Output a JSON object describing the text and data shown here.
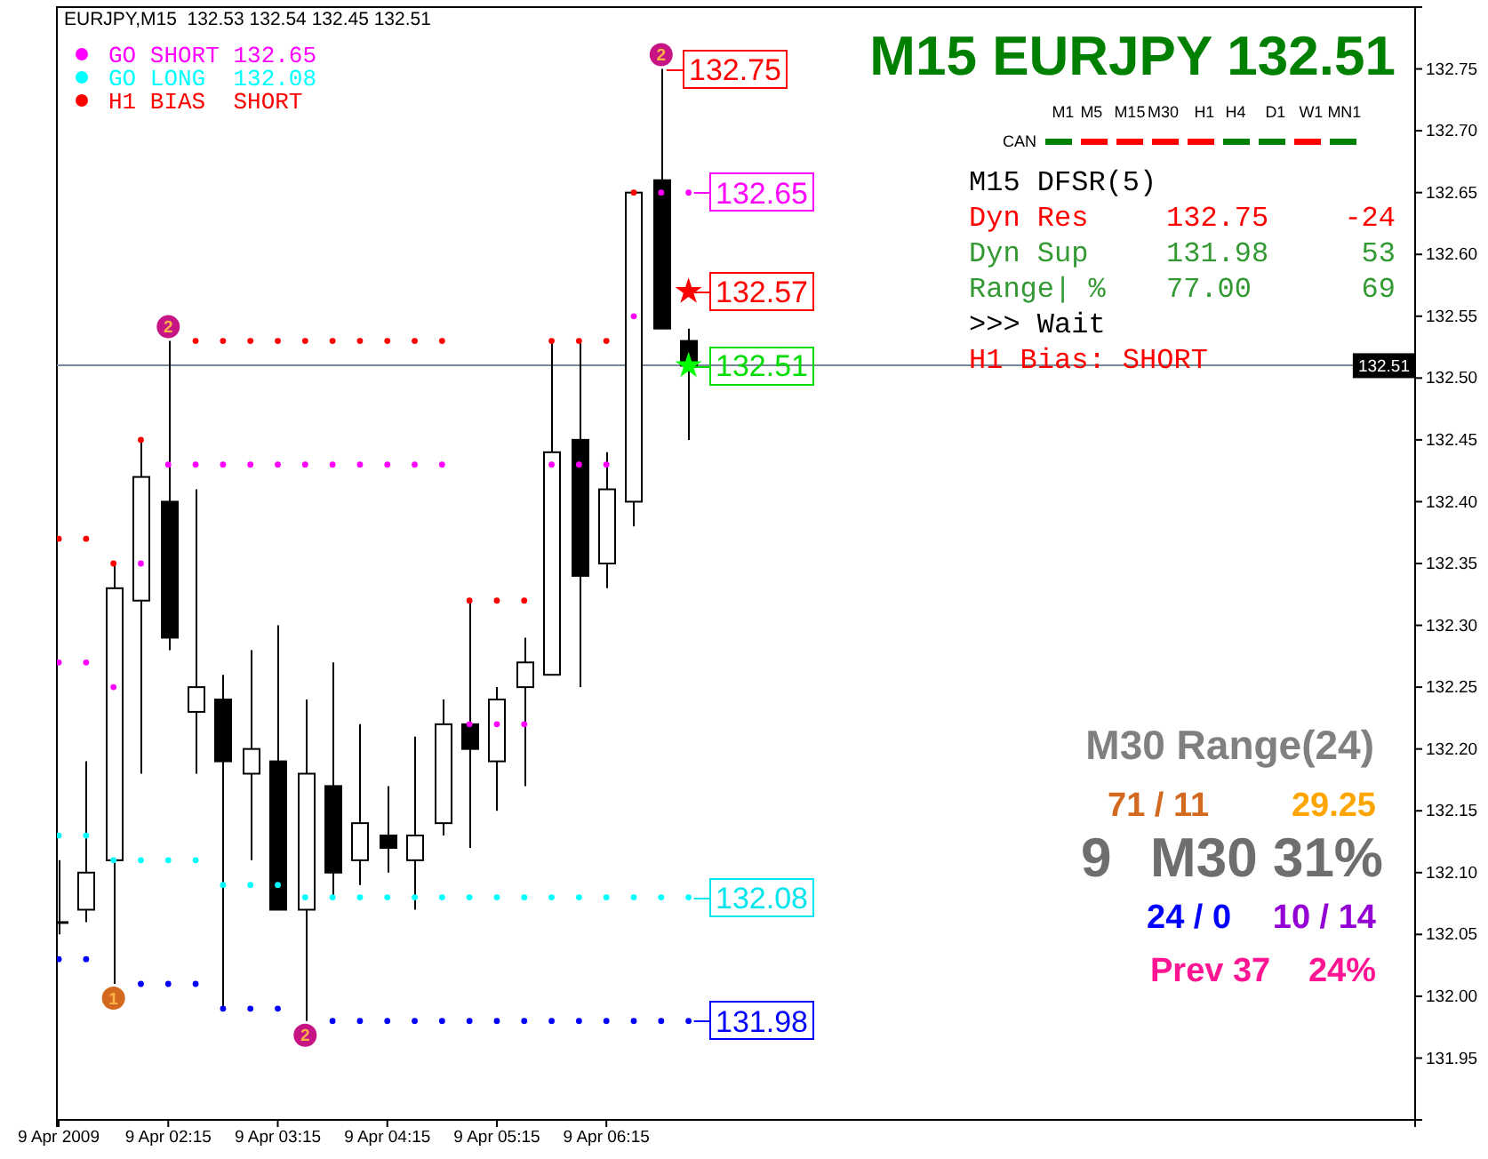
{
  "chart_data": {
    "type": "candlestick",
    "title": "M15 EURJPY 132.51",
    "subtitle": "EURJPY,M15  132.53 132.54 132.45 132.51",
    "x": [
      "2009-04-09T01:15",
      "2009-04-09T01:30",
      "2009-04-09T01:45",
      "2009-04-09T02:00",
      "2009-04-09T02:15",
      "2009-04-09T02:30",
      "2009-04-09T02:45",
      "2009-04-09T03:00",
      "2009-04-09T03:15",
      "2009-04-09T03:30",
      "2009-04-09T03:45",
      "2009-04-09T04:00",
      "2009-04-09T04:15",
      "2009-04-09T04:30",
      "2009-04-09T04:45",
      "2009-04-09T05:00",
      "2009-04-09T05:15",
      "2009-04-09T05:30",
      "2009-04-09T05:45",
      "2009-04-09T06:00",
      "2009-04-09T06:15",
      "2009-04-09T06:30",
      "2009-04-09T06:45",
      "2009-04-09T07:00"
    ],
    "ohlc": [
      [
        132.06,
        132.11,
        132.05,
        132.06
      ],
      [
        132.07,
        132.19,
        132.06,
        132.1
      ],
      [
        132.11,
        132.35,
        132.01,
        132.33
      ],
      [
        132.32,
        132.45,
        132.18,
        132.42
      ],
      [
        132.4,
        132.53,
        132.28,
        132.29
      ],
      [
        132.23,
        132.41,
        132.18,
        132.25
      ],
      [
        132.24,
        132.26,
        131.99,
        132.19
      ],
      [
        132.18,
        132.28,
        132.11,
        132.2
      ],
      [
        132.19,
        132.3,
        132.07,
        132.07
      ],
      [
        132.07,
        132.24,
        131.98,
        132.18
      ],
      [
        132.17,
        132.27,
        132.08,
        132.1
      ],
      [
        132.11,
        132.22,
        132.09,
        132.14
      ],
      [
        132.13,
        132.17,
        132.1,
        132.12
      ],
      [
        132.11,
        132.21,
        132.07,
        132.13
      ],
      [
        132.14,
        132.24,
        132.13,
        132.22
      ],
      [
        132.22,
        132.32,
        132.12,
        132.2
      ],
      [
        132.19,
        132.25,
        132.15,
        132.24
      ],
      [
        132.25,
        132.29,
        132.17,
        132.27
      ],
      [
        132.26,
        132.53,
        132.26,
        132.44
      ],
      [
        132.45,
        132.53,
        132.25,
        132.34
      ],
      [
        132.35,
        132.44,
        132.33,
        132.41
      ],
      [
        132.4,
        132.65,
        132.38,
        132.65
      ],
      [
        132.66,
        132.75,
        132.54,
        132.54
      ],
      [
        132.53,
        132.54,
        132.45,
        132.51
      ]
    ],
    "xlim": [
      "2009-04-09T01:14",
      "2009-04-09T13:38"
    ],
    "xticks": [
      {
        "value": "2009-04-09T01:15",
        "label": "9 Apr 2009"
      },
      {
        "value": "2009-04-09T02:15",
        "label": "9 Apr 02:15"
      },
      {
        "value": "2009-04-09T03:15",
        "label": "9 Apr 03:15"
      },
      {
        "value": "2009-04-09T04:15",
        "label": "9 Apr 04:15"
      },
      {
        "value": "2009-04-09T05:15",
        "label": "9 Apr 05:15"
      },
      {
        "value": "2009-04-09T06:15",
        "label": "9 Apr 06:15"
      }
    ],
    "ylim": [
      131.9,
      132.8
    ],
    "yticks": [
      131.95,
      {
        "value": 132.0,
        "label": "132.00"
      },
      132.05,
      {
        "value": 132.1,
        "label": "132.10"
      },
      132.15,
      {
        "value": 132.2,
        "label": "132.20"
      },
      132.25,
      {
        "value": 132.3,
        "label": "132.30"
      },
      132.35,
      {
        "value": 132.4,
        "label": "132.40"
      },
      132.45,
      {
        "value": 132.5,
        "label": "132.50"
      },
      132.55,
      {
        "value": 132.6,
        "label": "132.60"
      },
      132.65,
      {
        "value": 132.7,
        "label": "132.70"
      },
      132.75
    ],
    "series": [
      {
        "type": "scatter",
        "marker": "circle",
        "color": "#ff0000",
        "x": [
          "2009-04-09T01:15",
          "2009-04-09T01:30",
          "2009-04-09T01:45",
          "2009-04-09T02:00",
          "2009-04-09T02:30",
          "2009-04-09T02:45",
          "2009-04-09T03:00",
          "2009-04-09T03:15",
          "2009-04-09T03:30",
          "2009-04-09T03:45",
          "2009-04-09T04:00",
          "2009-04-09T04:15",
          "2009-04-09T04:30",
          "2009-04-09T04:45",
          "2009-04-09T05:00",
          "2009-04-09T05:15",
          "2009-04-09T05:30",
          "2009-04-09T05:45",
          "2009-04-09T06:00",
          "2009-04-09T06:15",
          "2009-04-09T06:30"
        ],
        "values": [
          132.37,
          132.37,
          132.35,
          132.45,
          132.53,
          132.53,
          132.53,
          132.53,
          132.53,
          132.53,
          132.53,
          132.53,
          132.53,
          132.53,
          132.32,
          132.32,
          132.32,
          132.53,
          132.53,
          132.53,
          132.65
        ]
      },
      {
        "type": "scatter",
        "marker": "circle",
        "color": "#ff00ff",
        "values": [
          132.27,
          132.27,
          132.25,
          132.35,
          132.43,
          132.43,
          132.43,
          132.43,
          132.43,
          132.43,
          132.43,
          132.43,
          132.43,
          132.43,
          132.43,
          132.22,
          132.22,
          132.22,
          132.43,
          132.43,
          132.43,
          132.55,
          132.65,
          132.65
        ]
      },
      {
        "type": "scatter",
        "marker": "circle",
        "color": "#00ffff",
        "values": [
          132.13,
          132.13,
          132.11,
          132.11,
          132.11,
          132.11,
          132.09,
          132.09,
          132.09,
          132.08,
          132.08,
          132.08,
          132.08,
          132.08,
          132.08,
          132.08,
          132.08,
          132.08,
          132.08,
          132.08,
          132.08,
          132.08,
          132.08,
          132.08
        ]
      },
      {
        "type": "scatter",
        "marker": "circle",
        "color": "#0000ff",
        "x": [
          "2009-04-09T01:15",
          "2009-04-09T01:30",
          "2009-04-09T02:00",
          "2009-04-09T02:15",
          "2009-04-09T02:30",
          "2009-04-09T02:45",
          "2009-04-09T03:00",
          "2009-04-09T03:15",
          "2009-04-09T03:45",
          "2009-04-09T04:00",
          "2009-04-09T04:15",
          "2009-04-09T04:30",
          "2009-04-09T04:45",
          "2009-04-09T05:00",
          "2009-04-09T05:15",
          "2009-04-09T05:30",
          "2009-04-09T05:45",
          "2009-04-09T06:00",
          "2009-04-09T06:15",
          "2009-04-09T06:30",
          "2009-04-09T06:45",
          "2009-04-09T07:00"
        ],
        "values": [
          132.03,
          132.03,
          132.01,
          132.01,
          132.01,
          131.99,
          131.99,
          131.99,
          131.98,
          131.98,
          131.98,
          131.98,
          131.98,
          131.98,
          131.98,
          131.98,
          131.98,
          131.98,
          131.98,
          131.98,
          131.98,
          131.98
        ]
      },
      {
        "type": "scatter",
        "marker": "star",
        "colors": [
          "#ff0000",
          "#00ff00"
        ],
        "x": [
          "2009-04-09T07:00",
          "2009-04-09T07:00"
        ],
        "values": [
          132.57,
          132.51
        ]
      }
    ],
    "ref_lines": [
      {
        "axis": "y",
        "value": 132.51,
        "label": "132.51",
        "color": "#778899"
      }
    ],
    "annotations": [
      "GO SHORT 132.65",
      "GO LONG  132.08",
      "H1 BIAS  SHORT",
      "M1",
      "M5",
      "M15",
      "M30",
      "H1",
      "H4",
      "D1",
      "W1",
      "MN1",
      "CAN",
      "M15 DFSR(5)",
      "Dyn Res",
      "132.75",
      "-24",
      "Dyn Sup",
      "131.98",
      "53",
      "Range| %",
      "77.00",
      "69",
      ">>> Wait",
      "H1 Bias: SHORT",
      "M30 Range(24)",
      "71 / 11",
      "29.25",
      "9",
      "M30 31%",
      "24 / 0",
      "10 / 14",
      "Prev 37",
      "24%",
      {
        "text": "132.75",
        "x": "2009-04-09T06:45",
        "y": 132.75
      },
      {
        "text": "132.65",
        "x": "2009-04-09T07:00",
        "y": 132.65
      },
      {
        "text": "132.57",
        "x": "2009-04-09T07:00",
        "y": 132.57
      },
      {
        "text": "132.51",
        "x": "2009-04-09T07:00",
        "y": 132.51
      },
      {
        "text": "132.08",
        "x": "2009-04-09T07:00",
        "y": 132.08
      },
      {
        "text": "131.98",
        "x": "2009-04-09T07:00",
        "y": 131.98
      },
      {
        "text": "2",
        "x": "2009-04-09T02:15",
        "y": 132.53
      },
      {
        "text": "2",
        "x": "2009-04-09T03:30",
        "y": 131.98
      },
      {
        "text": "2",
        "x": "2009-04-09T06:45",
        "y": 132.75
      },
      {
        "text": "1",
        "x": "2009-04-09T01:45",
        "y": 132.01
      }
    ]
  }
}
